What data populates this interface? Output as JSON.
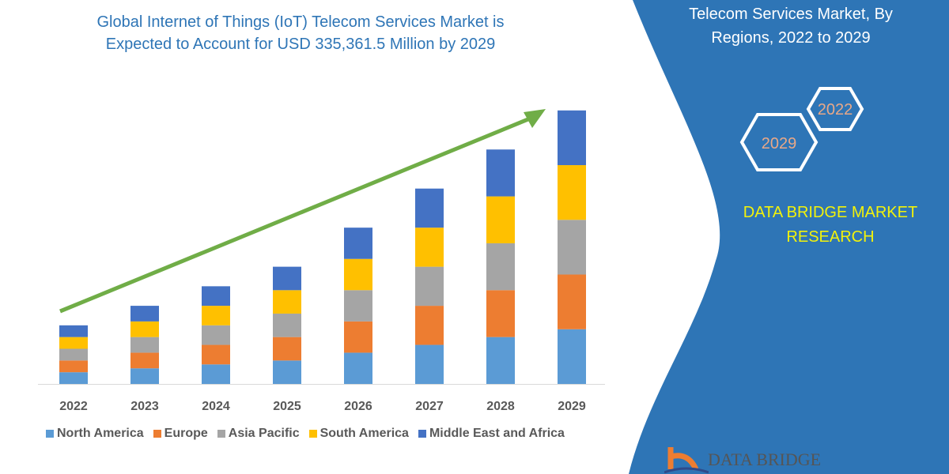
{
  "chart_data": {
    "type": "bar",
    "stacked": true,
    "title": "Global Internet of Things (IoT) Telecom Services Market is Expected to Account for USD 335,361.5 Million by 2029",
    "categories": [
      "2022",
      "2023",
      "2024",
      "2025",
      "2026",
      "2027",
      "2028",
      "2029"
    ],
    "series": [
      {
        "name": "North America",
        "color": "#5b9bd5",
        "values": [
          15,
          20,
          25,
          30,
          40,
          50,
          60,
          70
        ]
      },
      {
        "name": "Europe",
        "color": "#ed7d31",
        "values": [
          15,
          20,
          25,
          30,
          40,
          50,
          60,
          70
        ]
      },
      {
        "name": "Asia Pacific",
        "color": "#a5a5a5",
        "values": [
          15,
          20,
          25,
          30,
          40,
          50,
          60,
          70
        ]
      },
      {
        "name": "South America",
        "color": "#ffc000",
        "values": [
          15,
          20,
          25,
          30,
          40,
          50,
          60,
          70
        ]
      },
      {
        "name": "Middle East and Africa",
        "color": "#4472c4",
        "values": [
          15,
          20,
          25,
          30,
          40,
          50,
          60,
          70
        ]
      }
    ],
    "ylim": [
      0,
      370
    ],
    "grid": false,
    "legend_placement": "bottom",
    "trend_arrow_color": "#70ad47"
  },
  "header": {
    "title_line1": "Global Internet of Things (IoT) Telecom Services Market is",
    "title_line2": "Expected to Account for USD 335,361.5 Million by 2029"
  },
  "side_panel": {
    "title_line1": "Telecom Services Market, By",
    "title_line2": "Regions, 2022 to 2029",
    "hex_year_1": "2022",
    "hex_year_2": "2029",
    "brand_line1": "DATA BRIDGE MARKET",
    "brand_line2": "RESEARCH",
    "panel_color": "#2e75b6",
    "logo_text": "DATA BRIDGE"
  }
}
